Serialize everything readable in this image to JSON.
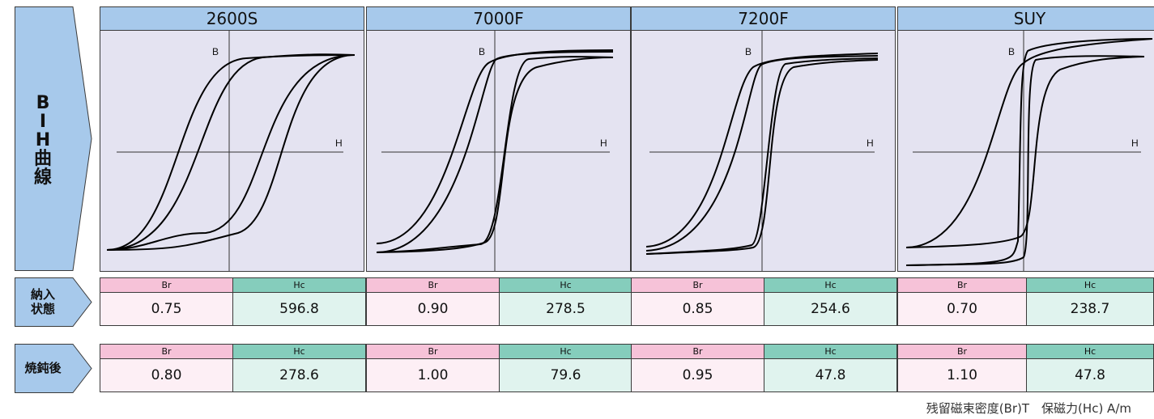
{
  "row_labels": {
    "bh_curve": [
      "B",
      "I",
      "H",
      "曲",
      "線"
    ],
    "as_delivered": [
      "納入",
      "状態"
    ],
    "annealed": "焼鈍後"
  },
  "axis_labels": {
    "b": "B",
    "h": "H"
  },
  "table_headers": {
    "br": "Br",
    "hc": "Hc"
  },
  "materials": [
    {
      "name": "2600S",
      "as_delivered": {
        "br": "0.75",
        "hc": "596.8"
      },
      "annealed": {
        "br": "0.80",
        "hc": "278.6"
      }
    },
    {
      "name": "7000F",
      "as_delivered": {
        "br": "0.90",
        "hc": "278.5"
      },
      "annealed": {
        "br": "1.00",
        "hc": "79.6"
      }
    },
    {
      "name": "7200F",
      "as_delivered": {
        "br": "0.85",
        "hc": "254.6"
      },
      "annealed": {
        "br": "0.95",
        "hc": "47.8"
      }
    },
    {
      "name": "SUY",
      "as_delivered": {
        "br": "0.70",
        "hc": "238.7"
      },
      "annealed": {
        "br": "1.10",
        "hc": "47.8"
      }
    }
  ],
  "footnote": "残留磁束密度(Br)T　保磁力(Hc) A/m",
  "colors": {
    "header_blue": "#a7c9eb",
    "plot_bg": "#e4e3f1",
    "br_header": "#f6c2d8",
    "hc_header": "#85cdbc",
    "br_value": "#fdeff5",
    "hc_value": "#e0f3ee",
    "arrow_fill": "#a7c9eb"
  }
}
